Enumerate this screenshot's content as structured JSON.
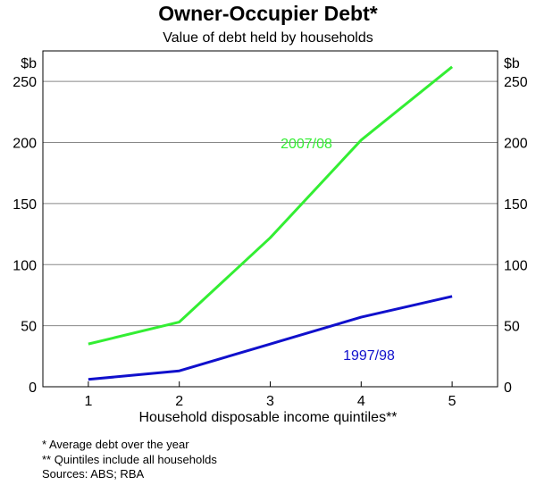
{
  "chart_data": {
    "type": "line",
    "title": "Owner-Occupier Debt*",
    "subtitle": "Value of debt held by households",
    "ylabel_left": "$b",
    "ylabel_right": "$b",
    "xlabel": "Household disposable income quintiles**",
    "categories": [
      "1",
      "2",
      "3",
      "4",
      "5"
    ],
    "ylim": [
      0,
      275
    ],
    "yticks": [
      0,
      50,
      100,
      150,
      200,
      250
    ],
    "grid": true,
    "series": [
      {
        "name": "2007/08",
        "color": "#33ee33",
        "values": [
          35,
          53,
          122,
          202,
          262
        ]
      },
      {
        "name": "1997/98",
        "color": "#1010cc",
        "values": [
          6,
          13,
          35,
          57,
          74
        ]
      }
    ],
    "notes": [
      "*   Average debt over the year",
      "** Quintiles include all households",
      "Sources: ABS; RBA"
    ]
  }
}
